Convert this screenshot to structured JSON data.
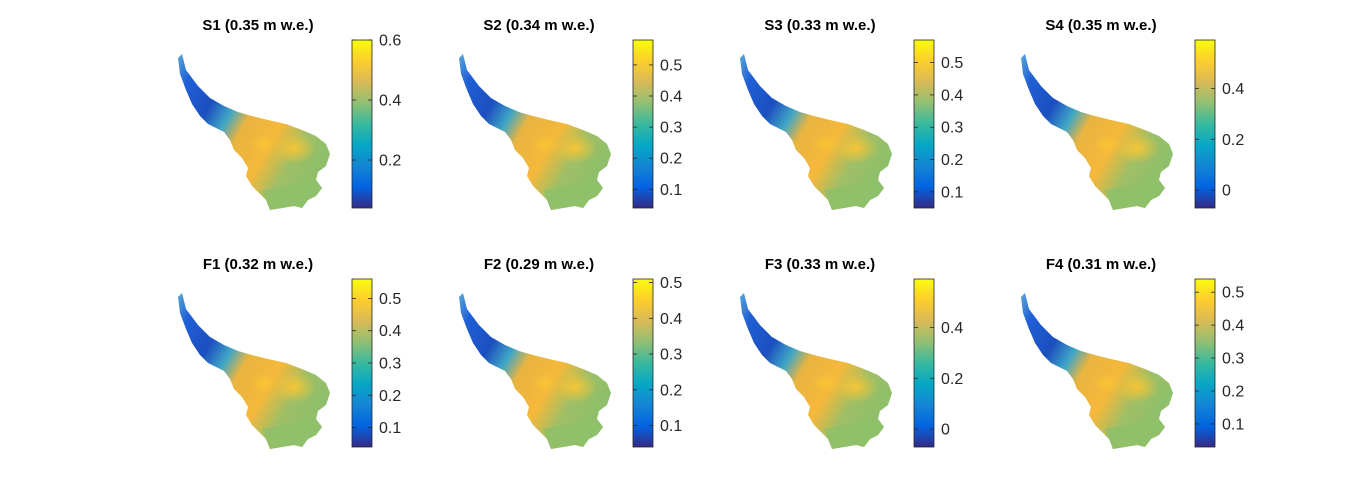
{
  "colors": {
    "parula": [
      "#352a87",
      "#0363e1",
      "#1485d4",
      "#06a7c6",
      "#38b99e",
      "#92bf73",
      "#d9ba56",
      "#fcce2e",
      "#f9fb0e"
    ],
    "glacier_low": "#1f5fd6",
    "glacier_mid": "#8fbf6a",
    "glacier_high": "#f5b83a"
  },
  "chart_data": [
    {
      "type": "heatmap",
      "title": "S1 (0.35 m w.e.)",
      "colorbar": {
        "lim": [
          0.04,
          0.6
        ],
        "ticks": [
          0.2,
          0.4,
          0.6
        ],
        "tick_labels": [
          "0.2",
          "0.4",
          "0.6"
        ]
      }
    },
    {
      "type": "heatmap",
      "title": "S2 (0.34 m w.e.)",
      "colorbar": {
        "lim": [
          0.04,
          0.58
        ],
        "ticks": [
          0.1,
          0.2,
          0.3,
          0.4,
          0.5
        ],
        "tick_labels": [
          "0.1",
          "0.2",
          "0.3",
          "0.4",
          "0.5"
        ]
      }
    },
    {
      "type": "heatmap",
      "title": "S3 (0.33 m w.e.)",
      "colorbar": {
        "lim": [
          0.05,
          0.57
        ],
        "ticks": [
          0.1,
          0.2,
          0.3,
          0.4,
          0.5
        ],
        "tick_labels": [
          "0.1",
          "0.2",
          "0.3",
          "0.4",
          "0.5"
        ]
      }
    },
    {
      "type": "heatmap",
      "title": "S4 (0.35 m w.e.)",
      "colorbar": {
        "lim": [
          -0.07,
          0.59
        ],
        "ticks": [
          0,
          0.2,
          0.4
        ],
        "tick_labels": [
          "0",
          "0.2",
          "0.4"
        ]
      }
    },
    {
      "type": "heatmap",
      "title": "F1 (0.32 m w.e.)",
      "colorbar": {
        "lim": [
          0.04,
          0.56
        ],
        "ticks": [
          0.1,
          0.2,
          0.3,
          0.4,
          0.5
        ],
        "tick_labels": [
          "0.1",
          "0.2",
          "0.3",
          "0.4",
          "0.5"
        ]
      }
    },
    {
      "type": "heatmap",
      "title": "F2 (0.29 m w.e.)",
      "colorbar": {
        "lim": [
          0.04,
          0.51
        ],
        "ticks": [
          0.1,
          0.2,
          0.3,
          0.4,
          0.5
        ],
        "tick_labels": [
          "0.1",
          "0.2",
          "0.3",
          "0.4",
          "0.5"
        ]
      }
    },
    {
      "type": "heatmap",
      "title": "F3 (0.33 m w.e.)",
      "colorbar": {
        "lim": [
          -0.07,
          0.59
        ],
        "ticks": [
          0,
          0.2,
          0.4
        ],
        "tick_labels": [
          "0",
          "0.2",
          "0.4"
        ]
      }
    },
    {
      "type": "heatmap",
      "title": "F4 (0.31 m w.e.)",
      "colorbar": {
        "lim": [
          0.03,
          0.54
        ],
        "ticks": [
          0.1,
          0.2,
          0.3,
          0.4,
          0.5
        ],
        "tick_labels": [
          "0.1",
          "0.2",
          "0.3",
          "0.4",
          "0.5"
        ]
      }
    }
  ]
}
